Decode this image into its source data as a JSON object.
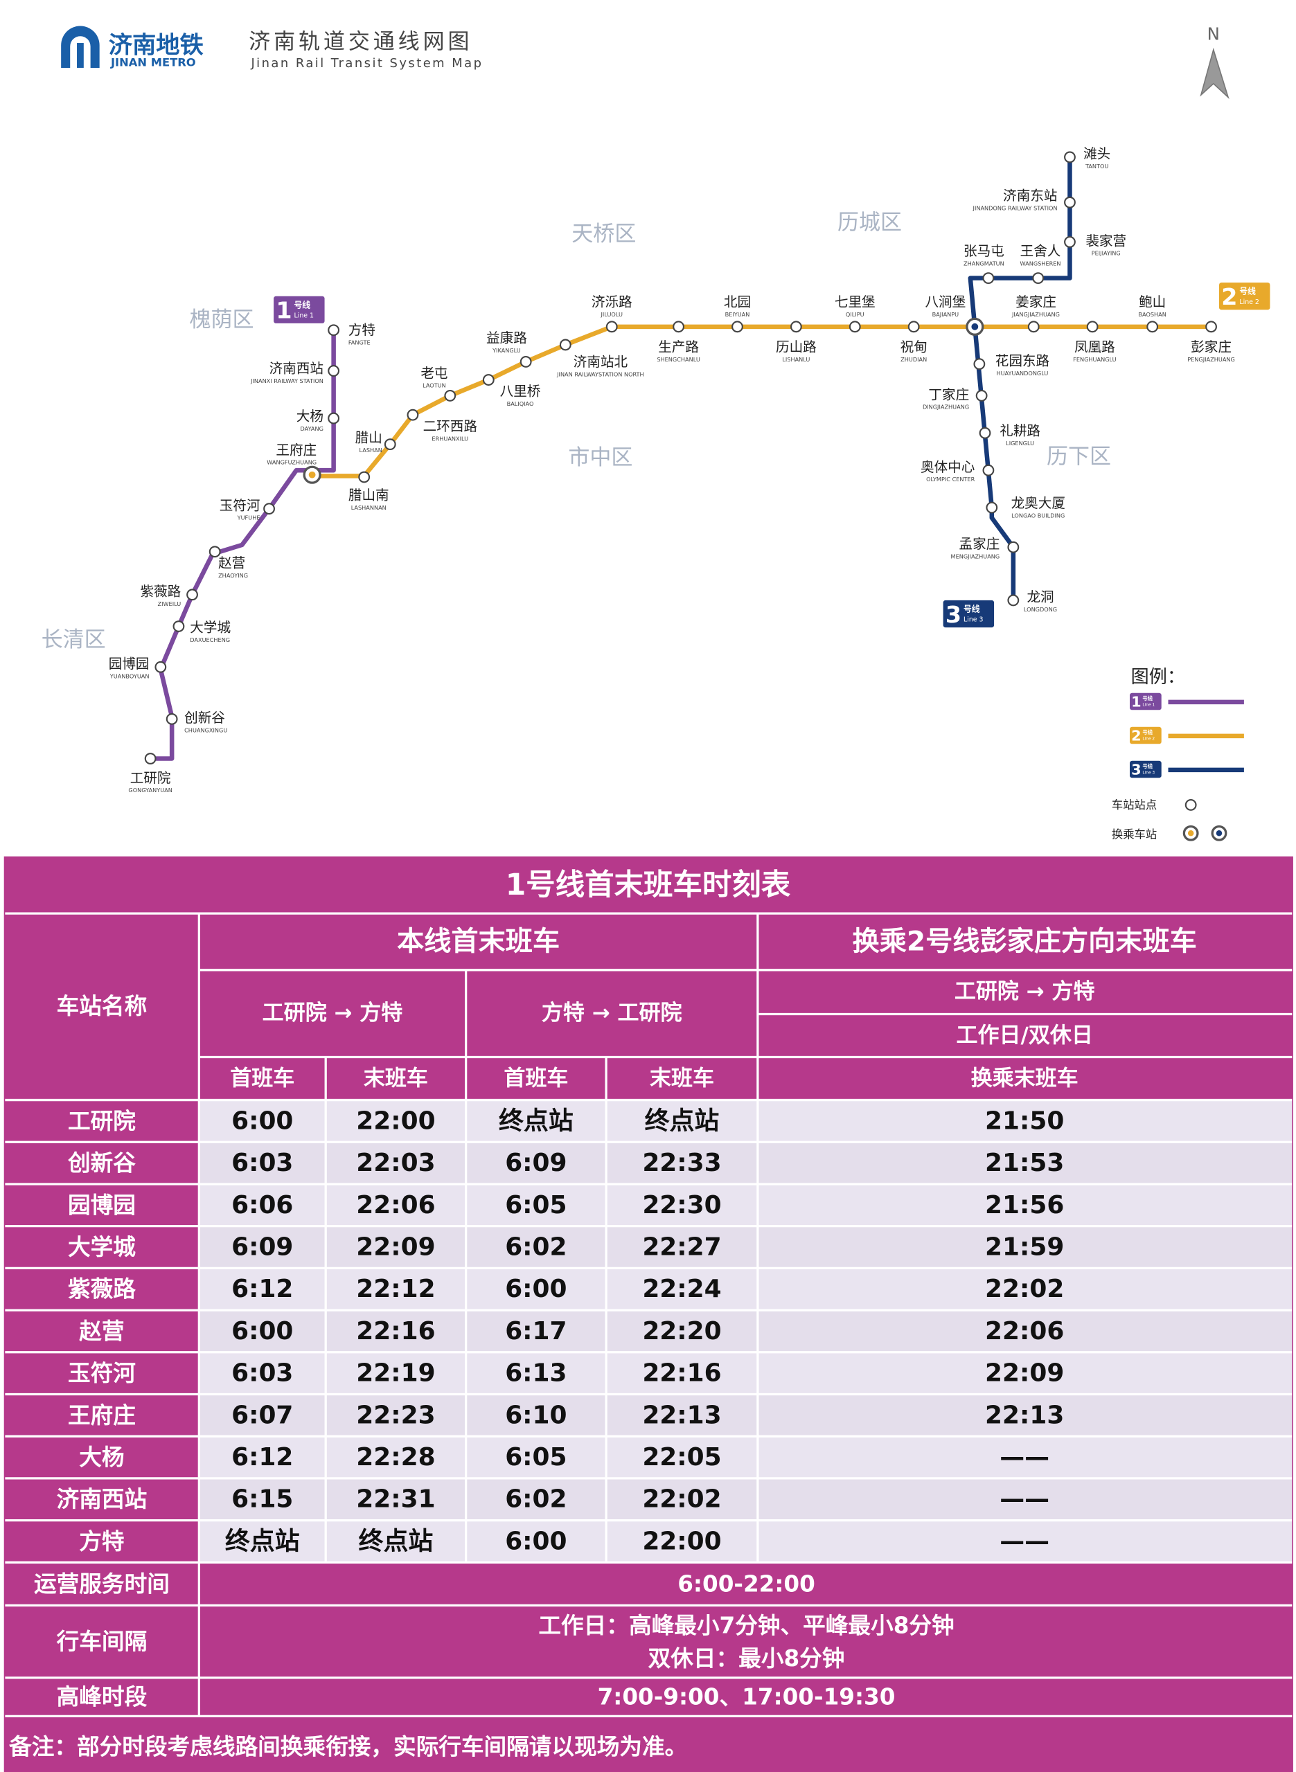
{
  "header": {
    "logo": "济南地铁",
    "logo_en": "JINAN METRO",
    "title": "济南轨道交通线网图",
    "title_en": "Jinan Rail Transit System Map",
    "north": "N"
  },
  "map": {
    "districts": [
      "槐荫区",
      "天桥区",
      "历城区",
      "市中区",
      "历下区",
      "长清区"
    ],
    "lines": [
      {
        "number": "1",
        "label": "号线",
        "en": "Line 1",
        "color": "#7b4a9e",
        "stations": [
          {
            "name": "工研院",
            "pinyin": "GONGYANYUAN"
          },
          {
            "name": "创新谷",
            "pinyin": "CHUANGXINGU"
          },
          {
            "name": "园博园",
            "pinyin": "YUANBOYUAN"
          },
          {
            "name": "大学城",
            "pinyin": "DAXUECHENG"
          },
          {
            "name": "紫薇路",
            "pinyin": "ZIWEILU"
          },
          {
            "name": "赵营",
            "pinyin": "ZHAOYING"
          },
          {
            "name": "玉符河",
            "pinyin": "YUFUHE"
          },
          {
            "name": "王府庄",
            "pinyin": "WANGFUZHUANG"
          },
          {
            "name": "大杨",
            "pinyin": "DAYANG"
          },
          {
            "name": "济南西站",
            "pinyin": "JINANXI RAILWAY STATION"
          },
          {
            "name": "方特",
            "pinyin": "FANGTE"
          }
        ]
      },
      {
        "number": "2",
        "label": "号线",
        "en": "Line 2",
        "color": "#e8a92b",
        "stations": [
          {
            "name": "腊山南",
            "pinyin": "LASHANNAN"
          },
          {
            "name": "腊山",
            "pinyin": "LASHAN"
          },
          {
            "name": "二环西路",
            "pinyin": "ERHUANXILU"
          },
          {
            "name": "老屯",
            "pinyin": "LAOTUN"
          },
          {
            "name": "八里桥",
            "pinyin": "BALIQIAO"
          },
          {
            "name": "益康路",
            "pinyin": "YIKANGLU"
          },
          {
            "name": "济南站北",
            "pinyin": "JINAN RAILWAYSTATION NORTH"
          },
          {
            "name": "济泺路",
            "pinyin": "JILUOLU"
          },
          {
            "name": "生产路",
            "pinyin": "SHENGCHANLU"
          },
          {
            "name": "北园",
            "pinyin": "BEIYUAN"
          },
          {
            "name": "历山路",
            "pinyin": "LISHANLU"
          },
          {
            "name": "七里堡",
            "pinyin": "QILIPU"
          },
          {
            "name": "祝甸",
            "pinyin": "ZHUDIAN"
          },
          {
            "name": "八涧堡",
            "pinyin": "BAJIANPU"
          },
          {
            "name": "姜家庄",
            "pinyin": "JIANGJIAZHUANG"
          },
          {
            "name": "凤凰路",
            "pinyin": "FENGHUANGLU"
          },
          {
            "name": "鲍山",
            "pinyin": "BAOSHAN"
          },
          {
            "name": "彭家庄",
            "pinyin": "PENGJIAZHUANG"
          }
        ]
      },
      {
        "number": "3",
        "label": "号线",
        "en": "Line 3",
        "color": "#173a78",
        "stations": [
          {
            "name": "滩头",
            "pinyin": "TANTOU"
          },
          {
            "name": "济南东站",
            "pinyin": "JINANDONG RAILWAY STATION"
          },
          {
            "name": "裴家营",
            "pinyin": "PEIJIAYING"
          },
          {
            "name": "王舍人",
            "pinyin": "WANGSHEREN"
          },
          {
            "name": "张马屯",
            "pinyin": "ZHANGMATUN"
          },
          {
            "name": "花园东路",
            "pinyin": "HUAYUANDONGLU"
          },
          {
            "name": "丁家庄",
            "pinyin": "DINGJIAZHUANG"
          },
          {
            "name": "礼耕路",
            "pinyin": "LIGENGLU"
          },
          {
            "name": "奥体中心",
            "pinyin": "OLYMPIC CENTER"
          },
          {
            "name": "龙奥大厦",
            "pinyin": "LONGAO BUILDING"
          },
          {
            "name": "孟家庄",
            "pinyin": "MENGJIAZHUANG"
          },
          {
            "name": "龙洞",
            "pinyin": "LONGDONG"
          }
        ]
      }
    ],
    "legend": {
      "title": "图例：",
      "station": "车站站点",
      "interchange": "换乘车站"
    }
  },
  "table": {
    "title": "1号线首末班车时刻表",
    "station_header": "车站名称",
    "own_line": "本线首末班车",
    "transfer": "换乘2号线彭家庄方向末班车",
    "dir1": "工研院 → 方特",
    "dir2": "方特 → 工研院",
    "transfer_dir": "工研院 → 方特",
    "transfer_days": "工作日/双休日",
    "subheaders": [
      "首班车",
      "末班车",
      "首班车",
      "末班车",
      "换乘末班车"
    ],
    "rows": [
      [
        "工研院",
        "6:00",
        "22:00",
        "终点站",
        "终点站",
        "21:50"
      ],
      [
        "创新谷",
        "6:03",
        "22:03",
        "6:09",
        "22:33",
        "21:53"
      ],
      [
        "园博园",
        "6:06",
        "22:06",
        "6:05",
        "22:30",
        "21:56"
      ],
      [
        "大学城",
        "6:09",
        "22:09",
        "6:02",
        "22:27",
        "21:59"
      ],
      [
        "紫薇路",
        "6:12",
        "22:12",
        "6:00",
        "22:24",
        "22:02"
      ],
      [
        "赵营",
        "6:00",
        "22:16",
        "6:17",
        "22:20",
        "22:06"
      ],
      [
        "玉符河",
        "6:03",
        "22:19",
        "6:13",
        "22:16",
        "22:09"
      ],
      [
        "王府庄",
        "6:07",
        "22:23",
        "6:10",
        "22:13",
        "22:13"
      ],
      [
        "大杨",
        "6:12",
        "22:28",
        "6:05",
        "22:05",
        "——"
      ],
      [
        "济南西站",
        "6:15",
        "22:31",
        "6:02",
        "22:02",
        "——"
      ],
      [
        "方特",
        "终点站",
        "终点站",
        "6:00",
        "22:00",
        "——"
      ]
    ],
    "service_label": "运营服务时间",
    "service": "6:00-22:00",
    "interval_label": "行车间隔",
    "interval": [
      "工作日：高峰最小7分钟、平峰最小8分钟",
      "双休日：最小8分钟"
    ],
    "peak_label": "高峰时段",
    "peak": "7:00-9:00、17:00-19:30",
    "note": "备注：部分时段考虑线路间换乘衔接，实际行车间隔请以现场为准。"
  }
}
